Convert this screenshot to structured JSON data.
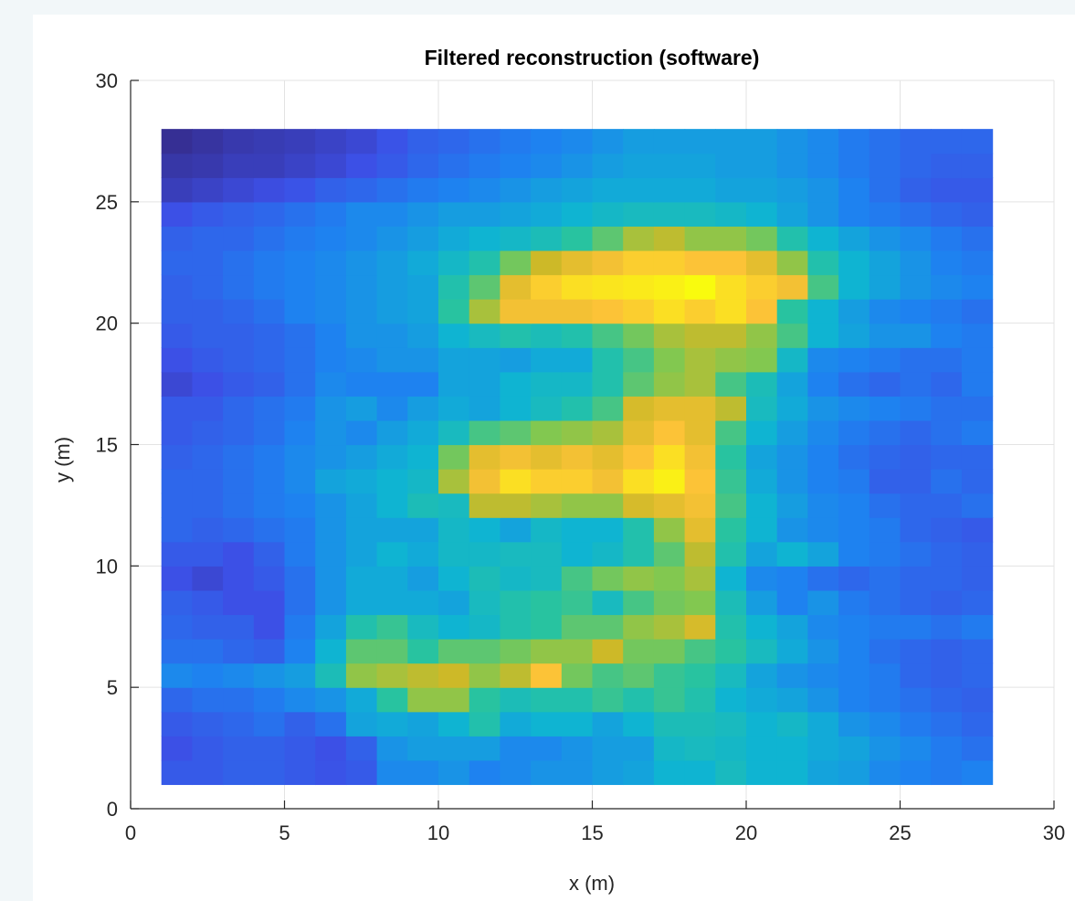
{
  "chart_data": {
    "type": "heatmap",
    "title": "Filtered reconstruction (software)",
    "xlabel": "x (m)",
    "ylabel": "y (m)",
    "xlim": [
      0,
      30
    ],
    "ylim": [
      0,
      30
    ],
    "xticks": [
      0,
      5,
      10,
      15,
      20,
      25,
      30
    ],
    "yticks": [
      0,
      5,
      10,
      15,
      20,
      25,
      30
    ],
    "grid": true,
    "colormap": "parula",
    "cell_x_start": 1,
    "cell_y_start": 1,
    "cell_size": 1,
    "value_range": [
      0,
      1
    ],
    "z_rows_bottom_to_top": [
      [
        0.18,
        0.18,
        0.2,
        0.2,
        0.18,
        0.16,
        0.18,
        0.32,
        0.32,
        0.35,
        0.3,
        0.32,
        0.35,
        0.35,
        0.38,
        0.4,
        0.45,
        0.45,
        0.5,
        0.45,
        0.45,
        0.4,
        0.38,
        0.32,
        0.3,
        0.28,
        0.3
      ],
      [
        0.15,
        0.18,
        0.2,
        0.2,
        0.18,
        0.15,
        0.2,
        0.35,
        0.38,
        0.38,
        0.38,
        0.32,
        0.32,
        0.35,
        0.38,
        0.38,
        0.48,
        0.5,
        0.48,
        0.45,
        0.45,
        0.42,
        0.4,
        0.35,
        0.32,
        0.28,
        0.25
      ],
      [
        0.18,
        0.2,
        0.22,
        0.25,
        0.2,
        0.25,
        0.4,
        0.42,
        0.4,
        0.45,
        0.55,
        0.42,
        0.45,
        0.45,
        0.4,
        0.45,
        0.52,
        0.52,
        0.5,
        0.45,
        0.48,
        0.42,
        0.35,
        0.32,
        0.28,
        0.25,
        0.22
      ],
      [
        0.22,
        0.25,
        0.25,
        0.28,
        0.32,
        0.35,
        0.42,
        0.58,
        0.72,
        0.72,
        0.58,
        0.52,
        0.55,
        0.55,
        0.6,
        0.55,
        0.6,
        0.55,
        0.45,
        0.42,
        0.4,
        0.35,
        0.3,
        0.28,
        0.25,
        0.22,
        0.2
      ],
      [
        0.32,
        0.3,
        0.32,
        0.35,
        0.38,
        0.52,
        0.72,
        0.75,
        0.78,
        0.8,
        0.72,
        0.78,
        0.9,
        0.68,
        0.62,
        0.65,
        0.6,
        0.58,
        0.5,
        0.4,
        0.35,
        0.32,
        0.3,
        0.28,
        0.22,
        0.2,
        0.22
      ],
      [
        0.25,
        0.25,
        0.22,
        0.2,
        0.3,
        0.45,
        0.65,
        0.65,
        0.58,
        0.65,
        0.65,
        0.68,
        0.72,
        0.72,
        0.8,
        0.68,
        0.68,
        0.62,
        0.58,
        0.5,
        0.42,
        0.35,
        0.3,
        0.25,
        0.22,
        0.2,
        0.22
      ],
      [
        0.22,
        0.2,
        0.2,
        0.15,
        0.28,
        0.4,
        0.55,
        0.6,
        0.5,
        0.45,
        0.48,
        0.55,
        0.58,
        0.65,
        0.65,
        0.72,
        0.75,
        0.82,
        0.55,
        0.45,
        0.4,
        0.32,
        0.3,
        0.28,
        0.28,
        0.25,
        0.28
      ],
      [
        0.2,
        0.18,
        0.15,
        0.15,
        0.25,
        0.35,
        0.42,
        0.42,
        0.42,
        0.4,
        0.5,
        0.55,
        0.58,
        0.6,
        0.5,
        0.62,
        0.68,
        0.7,
        0.52,
        0.38,
        0.3,
        0.35,
        0.28,
        0.25,
        0.22,
        0.2,
        0.22
      ],
      [
        0.15,
        0.12,
        0.15,
        0.18,
        0.25,
        0.35,
        0.42,
        0.42,
        0.38,
        0.45,
        0.52,
        0.48,
        0.5,
        0.62,
        0.68,
        0.72,
        0.7,
        0.75,
        0.45,
        0.32,
        0.3,
        0.25,
        0.22,
        0.25,
        0.22,
        0.22,
        0.2
      ],
      [
        0.18,
        0.18,
        0.15,
        0.2,
        0.28,
        0.35,
        0.4,
        0.45,
        0.42,
        0.48,
        0.48,
        0.5,
        0.5,
        0.45,
        0.48,
        0.55,
        0.65,
        0.78,
        0.55,
        0.4,
        0.45,
        0.4,
        0.3,
        0.28,
        0.25,
        0.22,
        0.2
      ],
      [
        0.22,
        0.2,
        0.22,
        0.25,
        0.28,
        0.35,
        0.4,
        0.4,
        0.4,
        0.48,
        0.45,
        0.4,
        0.48,
        0.45,
        0.45,
        0.55,
        0.72,
        0.85,
        0.58,
        0.45,
        0.35,
        0.32,
        0.3,
        0.28,
        0.22,
        0.2,
        0.18
      ],
      [
        0.22,
        0.22,
        0.25,
        0.28,
        0.3,
        0.35,
        0.4,
        0.45,
        0.52,
        0.5,
        0.78,
        0.78,
        0.75,
        0.72,
        0.72,
        0.82,
        0.85,
        0.88,
        0.62,
        0.45,
        0.38,
        0.32,
        0.3,
        0.25,
        0.22,
        0.22,
        0.25
      ],
      [
        0.22,
        0.22,
        0.25,
        0.28,
        0.32,
        0.4,
        0.42,
        0.45,
        0.48,
        0.75,
        0.88,
        0.95,
        0.92,
        0.92,
        0.88,
        0.95,
        0.98,
        0.9,
        0.6,
        0.42,
        0.35,
        0.3,
        0.28,
        0.2,
        0.2,
        0.25,
        0.22
      ],
      [
        0.2,
        0.22,
        0.25,
        0.28,
        0.32,
        0.35,
        0.38,
        0.42,
        0.45,
        0.68,
        0.85,
        0.88,
        0.85,
        0.88,
        0.85,
        0.9,
        0.95,
        0.88,
        0.58,
        0.4,
        0.35,
        0.3,
        0.25,
        0.22,
        0.2,
        0.22,
        0.22
      ],
      [
        0.18,
        0.2,
        0.22,
        0.25,
        0.3,
        0.35,
        0.32,
        0.38,
        0.42,
        0.5,
        0.62,
        0.65,
        0.7,
        0.72,
        0.75,
        0.85,
        0.9,
        0.85,
        0.62,
        0.45,
        0.38,
        0.32,
        0.28,
        0.25,
        0.22,
        0.25,
        0.28
      ],
      [
        0.18,
        0.18,
        0.22,
        0.25,
        0.28,
        0.35,
        0.38,
        0.32,
        0.38,
        0.42,
        0.4,
        0.45,
        0.5,
        0.55,
        0.62,
        0.82,
        0.85,
        0.85,
        0.78,
        0.5,
        0.42,
        0.35,
        0.32,
        0.3,
        0.28,
        0.25,
        0.25
      ],
      [
        0.12,
        0.15,
        0.18,
        0.2,
        0.25,
        0.32,
        0.3,
        0.3,
        0.3,
        0.4,
        0.4,
        0.45,
        0.48,
        0.48,
        0.55,
        0.65,
        0.72,
        0.75,
        0.62,
        0.52,
        0.4,
        0.3,
        0.25,
        0.22,
        0.25,
        0.22,
        0.28
      ],
      [
        0.15,
        0.18,
        0.2,
        0.22,
        0.25,
        0.3,
        0.32,
        0.35,
        0.35,
        0.4,
        0.4,
        0.38,
        0.42,
        0.42,
        0.55,
        0.62,
        0.7,
        0.75,
        0.72,
        0.7,
        0.48,
        0.32,
        0.3,
        0.28,
        0.25,
        0.25,
        0.28
      ],
      [
        0.18,
        0.2,
        0.2,
        0.22,
        0.25,
        0.3,
        0.35,
        0.35,
        0.38,
        0.45,
        0.5,
        0.55,
        0.52,
        0.55,
        0.62,
        0.68,
        0.75,
        0.78,
        0.78,
        0.72,
        0.62,
        0.45,
        0.4,
        0.35,
        0.35,
        0.3,
        0.28
      ],
      [
        0.2,
        0.2,
        0.22,
        0.25,
        0.3,
        0.32,
        0.35,
        0.38,
        0.4,
        0.58,
        0.75,
        0.88,
        0.88,
        0.88,
        0.9,
        0.92,
        0.95,
        0.92,
        0.95,
        0.9,
        0.58,
        0.45,
        0.38,
        0.32,
        0.3,
        0.28,
        0.25
      ],
      [
        0.2,
        0.22,
        0.25,
        0.28,
        0.3,
        0.32,
        0.35,
        0.38,
        0.4,
        0.55,
        0.65,
        0.85,
        0.92,
        0.95,
        0.96,
        0.97,
        0.98,
        1.0,
        0.95,
        0.92,
        0.88,
        0.62,
        0.45,
        0.4,
        0.35,
        0.32,
        0.3
      ],
      [
        0.22,
        0.22,
        0.25,
        0.28,
        0.3,
        0.32,
        0.35,
        0.38,
        0.42,
        0.48,
        0.55,
        0.68,
        0.8,
        0.85,
        0.88,
        0.92,
        0.92,
        0.9,
        0.9,
        0.85,
        0.72,
        0.55,
        0.45,
        0.4,
        0.35,
        0.3,
        0.28
      ],
      [
        0.2,
        0.22,
        0.22,
        0.25,
        0.28,
        0.3,
        0.32,
        0.35,
        0.38,
        0.42,
        0.45,
        0.48,
        0.52,
        0.58,
        0.65,
        0.75,
        0.78,
        0.72,
        0.72,
        0.68,
        0.55,
        0.45,
        0.4,
        0.35,
        0.32,
        0.28,
        0.25
      ],
      [
        0.15,
        0.18,
        0.2,
        0.22,
        0.25,
        0.28,
        0.32,
        0.32,
        0.35,
        0.38,
        0.38,
        0.4,
        0.42,
        0.45,
        0.48,
        0.5,
        0.5,
        0.5,
        0.48,
        0.45,
        0.4,
        0.35,
        0.3,
        0.28,
        0.25,
        0.22,
        0.2
      ],
      [
        0.08,
        0.1,
        0.12,
        0.14,
        0.16,
        0.2,
        0.22,
        0.25,
        0.28,
        0.3,
        0.32,
        0.35,
        0.38,
        0.4,
        0.42,
        0.42,
        0.42,
        0.42,
        0.4,
        0.4,
        0.38,
        0.35,
        0.3,
        0.25,
        0.2,
        0.18,
        0.18
      ],
      [
        0.05,
        0.06,
        0.08,
        0.08,
        0.1,
        0.12,
        0.15,
        0.18,
        0.22,
        0.25,
        0.28,
        0.3,
        0.32,
        0.35,
        0.38,
        0.4,
        0.4,
        0.4,
        0.38,
        0.38,
        0.35,
        0.32,
        0.28,
        0.25,
        0.22,
        0.2,
        0.2
      ],
      [
        0.02,
        0.04,
        0.06,
        0.07,
        0.08,
        0.1,
        0.12,
        0.16,
        0.2,
        0.22,
        0.25,
        0.28,
        0.3,
        0.32,
        0.35,
        0.38,
        0.38,
        0.38,
        0.38,
        0.38,
        0.35,
        0.32,
        0.28,
        0.25,
        0.22,
        0.22,
        0.22
      ]
    ]
  }
}
